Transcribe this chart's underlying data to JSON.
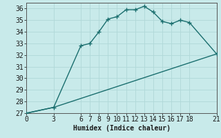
{
  "xlabel": "Humidex (Indice chaleur)",
  "background_color": "#c8eaea",
  "grid_color": "#b0d8d8",
  "line_color": "#1a6e6e",
  "series1_x": [
    0,
    3,
    6,
    7,
    8,
    9,
    10,
    11,
    12,
    13,
    14,
    15,
    16,
    17,
    18,
    21
  ],
  "series1_y": [
    27,
    27.5,
    32.8,
    33.0,
    34.0,
    35.1,
    35.3,
    35.9,
    35.9,
    36.2,
    35.7,
    34.9,
    34.7,
    35.0,
    34.8,
    32.1
  ],
  "series2_x": [
    0,
    3,
    21
  ],
  "series2_y": [
    27,
    27.5,
    32.1
  ],
  "xlim": [
    0,
    21
  ],
  "ylim": [
    27,
    36.5
  ],
  "xticks": [
    0,
    3,
    6,
    7,
    8,
    9,
    10,
    11,
    12,
    13,
    14,
    15,
    16,
    17,
    18,
    21
  ],
  "yticks": [
    27,
    28,
    29,
    30,
    31,
    32,
    33,
    34,
    35,
    36
  ],
  "fontsize": 7,
  "marker": "+",
  "markersize": 4,
  "linewidth": 1.0
}
